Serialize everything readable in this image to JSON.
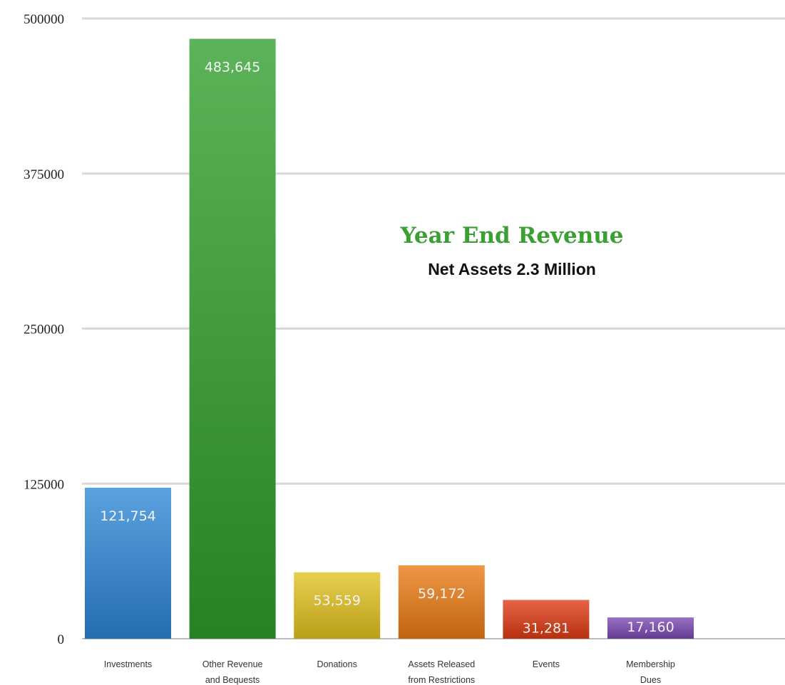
{
  "chart_data": {
    "type": "bar",
    "title": "Year End Revenue",
    "subtitle": "Net Assets 2.3 Million",
    "categories": [
      [
        "Investments"
      ],
      [
        "Other Revenue",
        "and Bequests"
      ],
      [
        "Donations"
      ],
      [
        "Assets Released",
        "from Restrictions"
      ],
      [
        "Events"
      ],
      [
        "Membership",
        "Dues"
      ]
    ],
    "values": [
      121754,
      483645,
      53559,
      59172,
      31281,
      17160
    ],
    "value_labels": [
      "121,754",
      "483,645",
      "53,559",
      "59,172",
      "31,281",
      "17,160"
    ],
    "colors": [
      "#2d86d6",
      "#2e9e2a",
      "#e3c21f",
      "#ea7a12",
      "#df3a12",
      "#7a48b3"
    ],
    "ylim": [
      0,
      500000
    ],
    "yticks": [
      "0",
      "125000",
      "250000",
      "375000",
      "500000"
    ],
    "grid": true
  }
}
